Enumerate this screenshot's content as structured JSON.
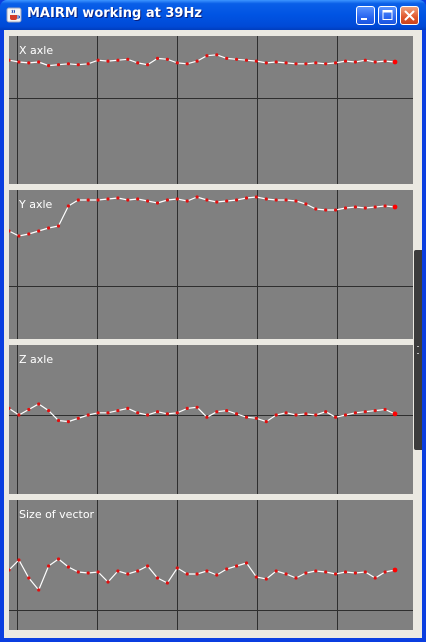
{
  "window": {
    "title": "MAIRM working at 39Hz"
  },
  "icons": {
    "app": "java-cup-icon",
    "minimize": "minimize-icon",
    "maximize": "maximize-icon",
    "close": "close-icon"
  },
  "colors": {
    "plot_background": "#808080",
    "grid_line": "#2e2e2e",
    "signal_line": "#ffffff",
    "sample_point": "#e01010",
    "last_point": "#ff0000"
  },
  "charts": [
    {
      "label": "X axle",
      "samples": [
        0.42,
        0.4,
        0.39,
        0.4,
        0.36,
        0.37,
        0.38,
        0.37,
        0.38,
        0.42,
        0.41,
        0.42,
        0.43,
        0.39,
        0.37,
        0.44,
        0.43,
        0.39,
        0.38,
        0.41,
        0.47,
        0.48,
        0.44,
        0.43,
        0.42,
        0.41,
        0.39,
        0.4,
        0.39,
        0.38,
        0.38,
        0.39,
        0.38,
        0.39,
        0.41,
        0.4,
        0.42,
        0.4,
        0.41,
        0.4
      ]
    },
    {
      "label": "Y axle",
      "samples": [
        0.55,
        0.5,
        0.52,
        0.55,
        0.58,
        0.6,
        0.8,
        0.86,
        0.86,
        0.86,
        0.87,
        0.88,
        0.86,
        0.87,
        0.85,
        0.83,
        0.86,
        0.87,
        0.85,
        0.89,
        0.86,
        0.84,
        0.85,
        0.86,
        0.88,
        0.89,
        0.87,
        0.86,
        0.86,
        0.85,
        0.82,
        0.77,
        0.76,
        0.76,
        0.78,
        0.79,
        0.78,
        0.79,
        0.8,
        0.79
      ]
    },
    {
      "label": "Z axle",
      "samples": [
        0.06,
        0.0,
        0.05,
        0.1,
        0.04,
        -0.05,
        -0.06,
        -0.03,
        0.0,
        0.02,
        0.02,
        0.04,
        0.06,
        0.02,
        0.0,
        0.03,
        0.01,
        0.02,
        0.06,
        0.07,
        -0.02,
        0.03,
        0.04,
        0.01,
        -0.02,
        -0.03,
        -0.06,
        0.0,
        0.02,
        0.0,
        0.01,
        0.0,
        0.03,
        -0.02,
        0.0,
        0.02,
        0.03,
        0.04,
        0.05,
        0.01
      ]
    },
    {
      "label": "Size of vector",
      "samples": [
        0.4,
        0.5,
        0.32,
        0.2,
        0.44,
        0.51,
        0.43,
        0.38,
        0.37,
        0.38,
        0.28,
        0.39,
        0.36,
        0.39,
        0.44,
        0.32,
        0.27,
        0.42,
        0.36,
        0.36,
        0.39,
        0.35,
        0.41,
        0.44,
        0.47,
        0.33,
        0.31,
        0.39,
        0.36,
        0.32,
        0.37,
        0.39,
        0.38,
        0.36,
        0.38,
        0.37,
        0.38,
        0.32,
        0.38,
        0.4
      ]
    }
  ]
}
